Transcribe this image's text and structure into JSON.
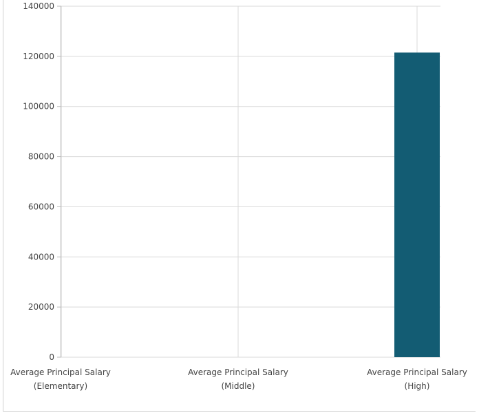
{
  "chart_data": {
    "type": "bar",
    "categories": [
      [
        "Average Principal Salary",
        "(Elementary)"
      ],
      [
        "Average Principal Salary",
        "(Middle)"
      ],
      [
        "Average Principal Salary",
        "(High)"
      ]
    ],
    "values": [
      0,
      0,
      121500
    ],
    "yticks": [
      "0",
      "20000",
      "40000",
      "60000",
      "80000",
      "100000",
      "120000",
      "140000"
    ],
    "ylim": [
      0,
      140000
    ],
    "grid": true,
    "bar_color": "#135c73",
    "grid_color": "#d9d9d9",
    "title": "",
    "xlabel": "",
    "ylabel": ""
  }
}
